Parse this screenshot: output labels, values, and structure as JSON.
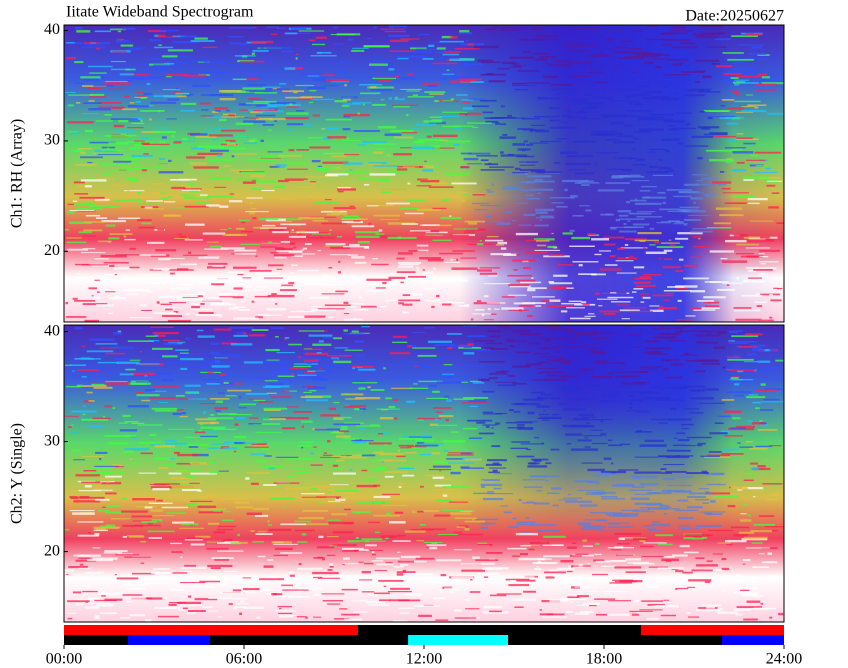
{
  "title": "Iitate Wideband Spectrogram",
  "date": "Date:20250627",
  "chart_data": [
    {
      "type": "spectrogram",
      "ylabel": "Ch1: RH (Array)",
      "ylim": [
        13.6,
        40.5
      ],
      "yticks": [
        20,
        30,
        40
      ],
      "xlim": [
        0,
        24
      ]
    },
    {
      "type": "spectrogram",
      "ylabel": "Ch2: Y (Single)",
      "ylim": [
        13.6,
        40.6
      ],
      "yticks": [
        20,
        30,
        40
      ],
      "xlim": [
        0,
        24
      ],
      "xticks": [
        {
          "value": 0,
          "label": "00:00"
        },
        {
          "value": 6,
          "label": "06:00"
        },
        {
          "value": 12,
          "label": "12:00"
        },
        {
          "value": 18,
          "label": "18:00"
        },
        {
          "value": 24,
          "label": "24:00"
        }
      ],
      "status_segments": [
        {
          "start": 0,
          "end": 9.8,
          "lane": 0,
          "color": "#ff0000"
        },
        {
          "start": 2.13,
          "end": 4.87,
          "lane": 1,
          "color": "#0000ff"
        },
        {
          "start": 11.47,
          "end": 14.8,
          "lane": 1,
          "color": "#00ffff"
        },
        {
          "start": 19.23,
          "end": 24,
          "lane": 0,
          "color": "#ff0000"
        },
        {
          "start": 21.93,
          "end": 24,
          "lane": 1,
          "color": "#0000ff"
        }
      ]
    }
  ]
}
